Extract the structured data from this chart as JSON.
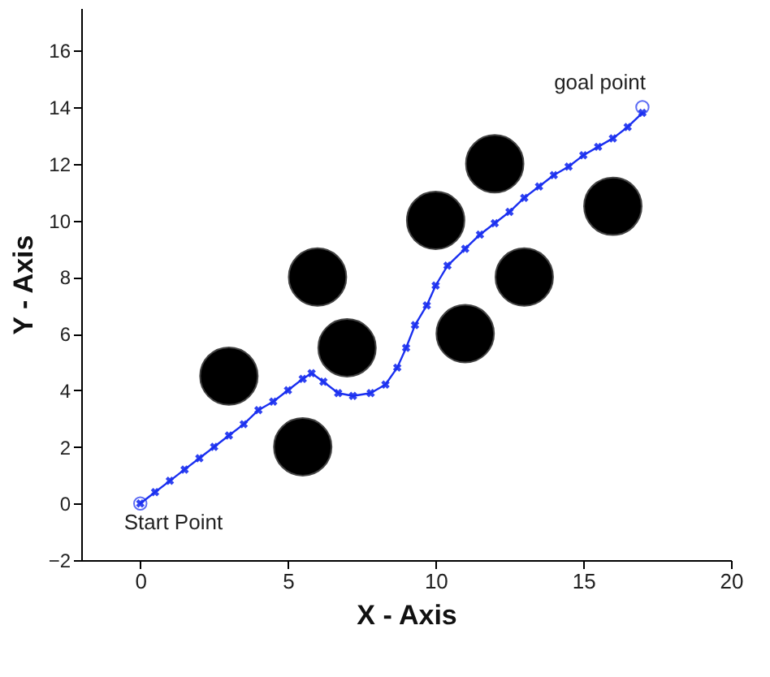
{
  "chart_data": {
    "type": "line",
    "xlabel": "X - Axis",
    "ylabel": "Y - Axis",
    "xlim": [
      -2,
      20
    ],
    "xticks": [
      0,
      5,
      10,
      15,
      20
    ],
    "ylim": [
      -2,
      17.5
    ],
    "yticks": [
      -2,
      0,
      2,
      4,
      6,
      8,
      10,
      12,
      14,
      16
    ],
    "grid": false,
    "series": [
      {
        "color": "#1a2ff0",
        "marker": "cross",
        "x": [
          0,
          0.5,
          1,
          1.5,
          2,
          2.5,
          3,
          3.5,
          4,
          4.5,
          5,
          5.5,
          5.8,
          6.2,
          6.7,
          7.2,
          7.8,
          8.3,
          8.7,
          9,
          9.3,
          9.7,
          10,
          10.4,
          11,
          11.5,
          12,
          12.5,
          13,
          13.5,
          14,
          14.5,
          15,
          15.5,
          16,
          16.5,
          17
        ],
        "values": [
          0,
          0.4,
          0.8,
          1.2,
          1.6,
          2,
          2.4,
          2.8,
          3.3,
          3.6,
          4,
          4.4,
          4.6,
          4.3,
          3.9,
          3.8,
          3.9,
          4.2,
          4.8,
          5.5,
          6.3,
          7,
          7.7,
          8.4,
          9,
          9.5,
          9.9,
          10.3,
          10.8,
          11.2,
          11.6,
          11.9,
          12.3,
          12.6,
          12.9,
          13.3,
          13.8
        ]
      },
      {
        "type": "scatter",
        "color": "#1a2ff0",
        "marker": "circle",
        "x": [
          0,
          17
        ],
        "values": [
          0,
          14
        ]
      },
      {
        "type": "scatter",
        "color": "#000000",
        "marker": "circle",
        "x": [
          3,
          5.5,
          6,
          7,
          10,
          11,
          12,
          13,
          16
        ],
        "values": [
          4.5,
          2,
          8,
          5.5,
          10,
          6,
          12,
          8,
          10.5
        ]
      }
    ],
    "annotations": [
      {
        "text": "Start Point",
        "x": 0,
        "y": 0
      },
      {
        "text": "goal point",
        "x": 17,
        "y": 14
      }
    ]
  }
}
